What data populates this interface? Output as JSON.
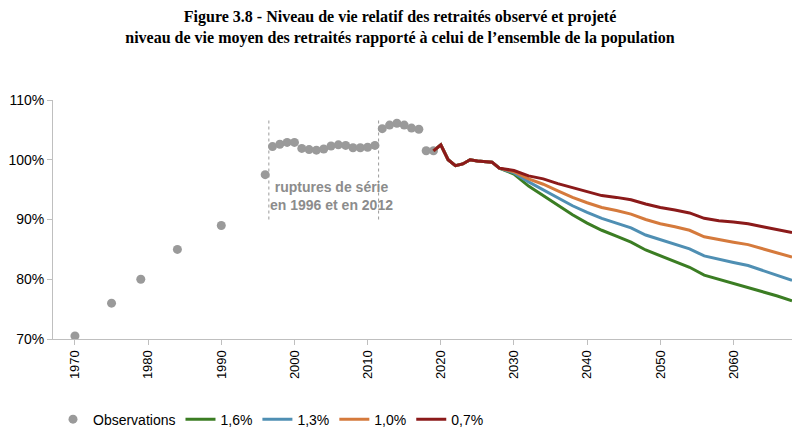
{
  "chart_data": {
    "type": "line",
    "title": "Figure 3.8 - Niveau de vie relatif des retraités observé et projeté",
    "subtitle": "niveau de vie moyen des retraités rapporté à celui de l’ensemble de la population",
    "xlim": [
      1967,
      2068
    ],
    "xticks": [
      1970,
      1980,
      1990,
      2000,
      2010,
      2020,
      2030,
      2040,
      2050,
      2060
    ],
    "ylim": [
      70,
      110
    ],
    "yticks": [
      {
        "value": 70,
        "label": "70%"
      },
      {
        "value": 80,
        "label": "80%"
      },
      {
        "value": 90,
        "label": "90%"
      },
      {
        "value": 100,
        "label": "100%"
      },
      {
        "value": 110,
        "label": "110%"
      }
    ],
    "grid": false,
    "legend": "bottom",
    "series_breaks": [
      1996.5,
      2011.5
    ],
    "annotation": {
      "lines": [
        "ruptures de série",
        "en 1996 et en 2012"
      ],
      "x": 2005,
      "y": 94
    },
    "series": [
      {
        "name": "Observations",
        "type": "scatter",
        "marker": "circle",
        "color": "#9a9a9a",
        "x": [
          1970,
          1975,
          1979,
          1984,
          1990,
          1996,
          1997,
          1998,
          1999,
          2000,
          2001,
          2002,
          2003,
          2004,
          2005,
          2006,
          2007,
          2008,
          2009,
          2010,
          2011,
          2012,
          2013,
          2014,
          2015,
          2016,
          2017,
          2018,
          2019
        ],
        "values": [
          70.5,
          76,
          80,
          85,
          89,
          97.5,
          102.2,
          102.6,
          102.9,
          102.9,
          101.9,
          101.7,
          101.6,
          101.8,
          102.3,
          102.5,
          102.4,
          102.0,
          102.0,
          102.1,
          102.4,
          105.2,
          105.8,
          106.1,
          105.8,
          105.3,
          105.1,
          101.5,
          101.5
        ]
      },
      {
        "name": "1,6%",
        "type": "line",
        "line_style": "solid",
        "color": "#3b7d23",
        "x": [
          2019,
          2020,
          2021,
          2022,
          2023,
          2024,
          2025,
          2026,
          2027,
          2028,
          2030,
          2032,
          2034,
          2036,
          2038,
          2040,
          2042,
          2044,
          2046,
          2048,
          2050,
          2052,
          2054,
          2056,
          2058,
          2060,
          2062,
          2064,
          2066,
          2068
        ],
        "values": [
          101.5,
          102.5,
          100.0,
          99.0,
          99.3,
          100.0,
          99.8,
          99.7,
          99.6,
          98.6,
          97.6,
          95.6,
          94.0,
          92.3,
          90.8,
          89.4,
          88.2,
          87.2,
          86.2,
          84.9,
          83.9,
          83.0,
          82.0,
          80.7,
          80.0,
          79.3,
          78.7,
          77.9,
          77.2,
          76.4
        ]
      },
      {
        "name": "1,3%",
        "type": "line",
        "line_style": "solid",
        "color": "#4f8fb3",
        "x": [
          2019,
          2020,
          2021,
          2022,
          2023,
          2024,
          2025,
          2026,
          2027,
          2028,
          2030,
          2032,
          2034,
          2036,
          2038,
          2040,
          2042,
          2044,
          2046,
          2048,
          2050,
          2052,
          2054,
          2056,
          2058,
          2060,
          2062,
          2064,
          2066,
          2068
        ],
        "values": [
          101.5,
          102.5,
          100.0,
          99.0,
          99.3,
          100.0,
          99.8,
          99.7,
          99.6,
          98.6,
          97.8,
          96.3,
          95.0,
          93.6,
          92.3,
          91.2,
          90.2,
          89.4,
          88.6,
          87.4,
          86.6,
          85.9,
          85.1,
          83.9,
          83.3,
          82.8,
          82.3,
          81.5,
          80.7,
          79.8
        ]
      },
      {
        "name": "1,0%",
        "type": "line",
        "line_style": "solid",
        "color": "#d57a3c",
        "x": [
          2019,
          2020,
          2021,
          2022,
          2023,
          2024,
          2025,
          2026,
          2027,
          2028,
          2030,
          2032,
          2034,
          2036,
          2038,
          2040,
          2042,
          2044,
          2046,
          2048,
          2050,
          2052,
          2054,
          2056,
          2058,
          2060,
          2062,
          2064,
          2066,
          2068
        ],
        "values": [
          101.5,
          102.5,
          100.0,
          99.0,
          99.3,
          100.0,
          99.8,
          99.7,
          99.6,
          98.6,
          98.0,
          96.8,
          95.9,
          94.8,
          93.7,
          92.8,
          92.0,
          91.5,
          90.9,
          90.0,
          89.3,
          88.8,
          88.2,
          87.1,
          86.6,
          86.2,
          85.8,
          85.1,
          84.4,
          83.7
        ]
      },
      {
        "name": "0,7%",
        "type": "line",
        "line_style": "solid",
        "color": "#8b1a1a",
        "x": [
          2019,
          2020,
          2021,
          2022,
          2023,
          2024,
          2025,
          2026,
          2027,
          2028,
          2030,
          2032,
          2034,
          2036,
          2038,
          2040,
          2042,
          2044,
          2046,
          2048,
          2050,
          2052,
          2054,
          2056,
          2058,
          2060,
          2062,
          2064,
          2066,
          2068
        ],
        "values": [
          101.5,
          102.5,
          100.0,
          99.0,
          99.3,
          100.0,
          99.8,
          99.7,
          99.6,
          98.6,
          98.2,
          97.3,
          96.8,
          96.0,
          95.3,
          94.6,
          94.0,
          93.7,
          93.3,
          92.6,
          92.0,
          91.6,
          91.1,
          90.2,
          89.8,
          89.6,
          89.3,
          88.8,
          88.3,
          87.8
        ]
      }
    ]
  }
}
